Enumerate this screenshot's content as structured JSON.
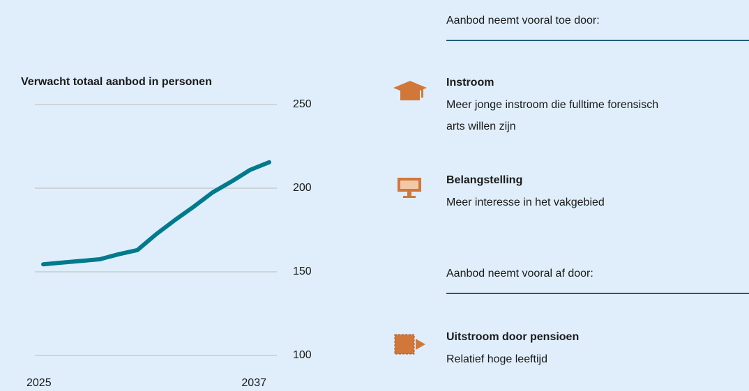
{
  "chart_data": {
    "type": "line",
    "title": "Verwacht totaal aanbod in personen",
    "x": [
      2025,
      2026,
      2027,
      2028,
      2029,
      2030,
      2031,
      2032,
      2033,
      2034,
      2035,
      2036,
      2037
    ],
    "series": [
      {
        "name": null,
        "color": "#007a8c",
        "values": [
          154.5,
          155.5,
          156.5,
          157.5,
          160.5,
          163,
          172.5,
          181,
          189,
          197.5,
          204,
          211,
          215.5
        ]
      }
    ],
    "xlim": [
      2025,
      2037
    ],
    "xticks": [
      2025,
      2037
    ],
    "ylim": [
      100,
      250
    ],
    "yticks": [
      100,
      150,
      200,
      250
    ],
    "grid": true
  },
  "sections": [
    {
      "heading": "Aanbod neemt vooral toe door:",
      "items": [
        {
          "title": "Instroom",
          "lines": [
            "Meer jonge instroom die fulltime forensisch",
            "arts willen zijn"
          ]
        },
        {
          "title": "Belangstelling",
          "lines": [
            "Meer interesse in het vakgebied"
          ]
        }
      ]
    },
    {
      "heading": "Aanbod neemt vooral af door:",
      "items": [
        {
          "title": "Uitstroom door pensioen",
          "lines": [
            "Relatief hoge leeftijd"
          ]
        }
      ]
    }
  ]
}
